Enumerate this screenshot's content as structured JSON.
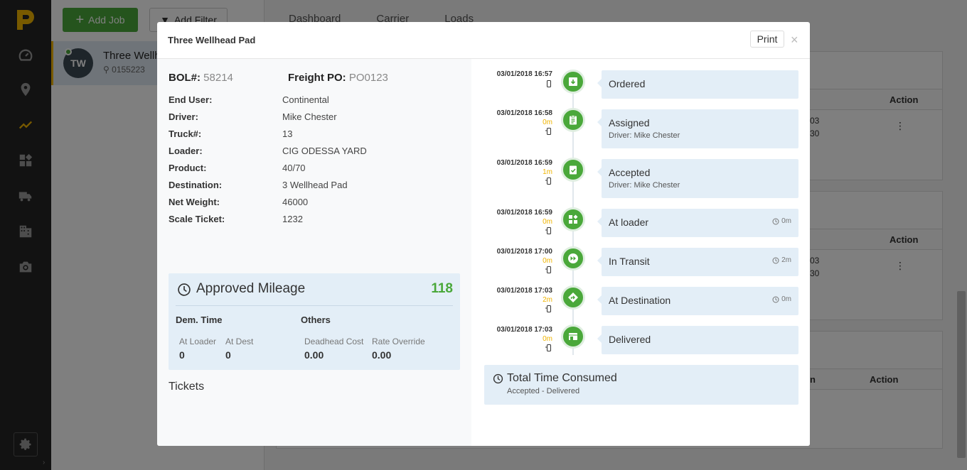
{
  "background": {
    "add_job_label": "Add Job",
    "add_filter_label": "Add Filter",
    "job_item": {
      "initials": "TW",
      "title": "Three Wellhe",
      "id": "0155223"
    },
    "tabs": [
      "Dashboard",
      "Carrier",
      "Loads"
    ],
    "action_label": "Action",
    "row_fragments": [
      "03",
      "30"
    ],
    "col_fragment": "n"
  },
  "modal": {
    "title": "Three Wellhead Pad",
    "print_label": "Print",
    "close_label": "×",
    "bol_label": "BOL#:",
    "bol_value": "58214",
    "po_label": "Freight PO:",
    "po_value": "PO0123",
    "fields": [
      {
        "label": "End User:",
        "value": "Continental"
      },
      {
        "label": "Driver:",
        "value": "Mike Chester"
      },
      {
        "label": "Truck#:",
        "value": "13"
      },
      {
        "label": "Loader:",
        "value": "CIG ODESSA YARD"
      },
      {
        "label": "Product:",
        "value": "40/70"
      },
      {
        "label": "Destination:",
        "value": "3 Wellhead Pad"
      },
      {
        "label": "Net Weight:",
        "value": "46000"
      },
      {
        "label": "Scale Ticket:",
        "value": "1232"
      }
    ],
    "mileage": {
      "title": "Approved Mileage",
      "value": "118",
      "dem_time_label": "Dem. Time",
      "others_label": "Others",
      "at_loader_label": "At Loader",
      "at_loader_value": "0",
      "at_dest_label": "At Dest",
      "at_dest_value": "0",
      "deadhead_label": "Deadhead Cost",
      "deadhead_value": "0.00",
      "rate_override_label": "Rate Override",
      "rate_override_value": "0.00"
    },
    "tickets_label": "Tickets",
    "timeline": [
      {
        "time": "03/01/2018 16:57",
        "duration": "",
        "label": "Ordered",
        "sub": "",
        "elapsed": "",
        "icon": "archive-download-icon"
      },
      {
        "time": "03/01/2018 16:58",
        "duration": "0m",
        "label": "Assigned",
        "sub": "Driver: Mike Chester",
        "elapsed": "",
        "icon": "clipboard-icon"
      },
      {
        "time": "03/01/2018 16:59",
        "duration": "1m",
        "label": "Accepted",
        "sub": "Driver: Mike Chester",
        "elapsed": "",
        "icon": "clipboard-check-icon"
      },
      {
        "time": "03/01/2018 16:59",
        "duration": "0m",
        "label": "At loader",
        "sub": "",
        "elapsed": "0m",
        "icon": "widgets-icon"
      },
      {
        "time": "03/01/2018 17:00",
        "duration": "0m",
        "label": "In Transit",
        "sub": "",
        "elapsed": "2m",
        "icon": "fast-forward-icon"
      },
      {
        "time": "03/01/2018 17:03",
        "duration": "2m",
        "label": "At Destination",
        "sub": "",
        "elapsed": "0m",
        "icon": "directions-icon"
      },
      {
        "time": "03/01/2018 17:03",
        "duration": "0m",
        "label": "Delivered",
        "sub": "",
        "elapsed": "",
        "icon": "store-icon"
      }
    ],
    "total": {
      "title": "Total Time Consumed",
      "sub": "Accepted - Delivered"
    }
  }
}
